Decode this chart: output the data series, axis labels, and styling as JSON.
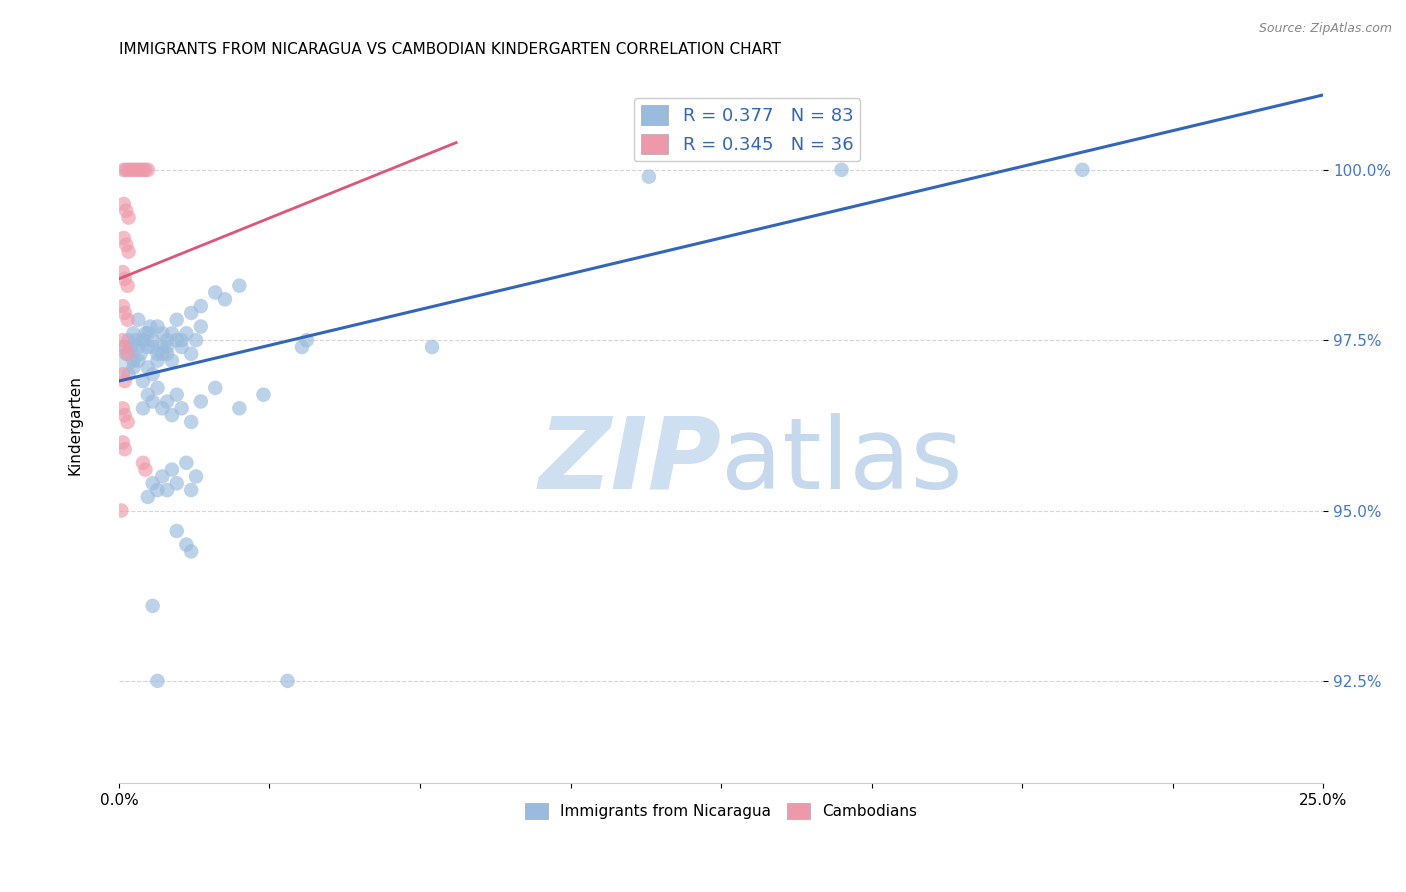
{
  "title": "IMMIGRANTS FROM NICARAGUA VS CAMBODIAN KINDERGARTEN CORRELATION CHART",
  "source": "Source: ZipAtlas.com",
  "ylabel": "Kindergarten",
  "yticks": [
    92.5,
    95.0,
    97.5,
    100.0
  ],
  "ytick_labels": [
    "92.5%",
    "95.0%",
    "97.5%",
    "100.0%"
  ],
  "xlim": [
    0.0,
    25.0
  ],
  "ylim": [
    91.0,
    101.5
  ],
  "legend1_label": "R = 0.377   N = 83",
  "legend2_label": "R = 0.345   N = 36",
  "blue_color": "#99bbdd",
  "pink_color": "#ee99aa",
  "blue_line_color": "#3366bb",
  "pink_line_color": "#dd5577",
  "tick_color": "#4477cc",
  "blue_scatter": [
    [
      0.3,
      97.2
    ],
    [
      0.4,
      97.8
    ],
    [
      0.5,
      97.5
    ],
    [
      0.6,
      97.6
    ],
    [
      0.7,
      97.4
    ],
    [
      0.8,
      97.7
    ],
    [
      0.9,
      97.3
    ],
    [
      1.0,
      97.5
    ],
    [
      1.1,
      97.6
    ],
    [
      1.2,
      97.8
    ],
    [
      1.3,
      97.5
    ],
    [
      1.5,
      97.9
    ],
    [
      1.7,
      98.0
    ],
    [
      2.0,
      98.2
    ],
    [
      2.2,
      98.1
    ],
    [
      2.5,
      98.3
    ],
    [
      0.2,
      97.0
    ],
    [
      0.3,
      97.1
    ],
    [
      0.4,
      97.2
    ],
    [
      0.5,
      96.9
    ],
    [
      0.6,
      97.1
    ],
    [
      0.7,
      97.0
    ],
    [
      0.8,
      97.2
    ],
    [
      0.9,
      97.4
    ],
    [
      1.0,
      97.3
    ],
    [
      1.1,
      97.2
    ],
    [
      1.2,
      97.5
    ],
    [
      1.3,
      97.4
    ],
    [
      1.4,
      97.6
    ],
    [
      1.5,
      97.3
    ],
    [
      1.6,
      97.5
    ],
    [
      1.7,
      97.7
    ],
    [
      0.15,
      97.3
    ],
    [
      0.2,
      97.5
    ],
    [
      0.25,
      97.4
    ],
    [
      0.3,
      97.6
    ],
    [
      0.35,
      97.5
    ],
    [
      0.4,
      97.4
    ],
    [
      0.45,
      97.3
    ],
    [
      0.5,
      97.5
    ],
    [
      0.55,
      97.6
    ],
    [
      0.6,
      97.4
    ],
    [
      0.65,
      97.7
    ],
    [
      0.7,
      97.5
    ],
    [
      0.8,
      97.3
    ],
    [
      0.9,
      97.6
    ],
    [
      1.0,
      97.4
    ],
    [
      0.5,
      96.5
    ],
    [
      0.6,
      96.7
    ],
    [
      0.7,
      96.6
    ],
    [
      0.8,
      96.8
    ],
    [
      0.9,
      96.5
    ],
    [
      1.0,
      96.6
    ],
    [
      1.1,
      96.4
    ],
    [
      1.2,
      96.7
    ],
    [
      1.3,
      96.5
    ],
    [
      1.5,
      96.3
    ],
    [
      1.7,
      96.6
    ],
    [
      2.0,
      96.8
    ],
    [
      2.5,
      96.5
    ],
    [
      3.0,
      96.7
    ],
    [
      0.6,
      95.2
    ],
    [
      0.7,
      95.4
    ],
    [
      0.8,
      95.3
    ],
    [
      0.9,
      95.5
    ],
    [
      1.0,
      95.3
    ],
    [
      1.1,
      95.6
    ],
    [
      1.2,
      95.4
    ],
    [
      1.4,
      95.7
    ],
    [
      1.5,
      95.3
    ],
    [
      1.6,
      95.5
    ],
    [
      1.2,
      94.7
    ],
    [
      1.4,
      94.5
    ],
    [
      1.5,
      94.4
    ],
    [
      0.7,
      93.6
    ],
    [
      3.8,
      97.4
    ],
    [
      3.9,
      97.5
    ],
    [
      6.5,
      97.4
    ],
    [
      11.0,
      99.9
    ],
    [
      15.0,
      100.0
    ],
    [
      20.0,
      100.0
    ],
    [
      0.8,
      92.5
    ],
    [
      3.5,
      92.5
    ]
  ],
  "pink_scatter": [
    [
      0.1,
      100.0
    ],
    [
      0.15,
      100.0
    ],
    [
      0.2,
      100.0
    ],
    [
      0.25,
      100.0
    ],
    [
      0.3,
      100.0
    ],
    [
      0.35,
      100.0
    ],
    [
      0.4,
      100.0
    ],
    [
      0.45,
      100.0
    ],
    [
      0.5,
      100.0
    ],
    [
      0.55,
      100.0
    ],
    [
      0.6,
      100.0
    ],
    [
      0.1,
      99.5
    ],
    [
      0.15,
      99.4
    ],
    [
      0.2,
      99.3
    ],
    [
      0.1,
      99.0
    ],
    [
      0.15,
      98.9
    ],
    [
      0.2,
      98.8
    ],
    [
      0.08,
      98.5
    ],
    [
      0.12,
      98.4
    ],
    [
      0.18,
      98.3
    ],
    [
      0.08,
      98.0
    ],
    [
      0.12,
      97.9
    ],
    [
      0.18,
      97.8
    ],
    [
      0.08,
      97.5
    ],
    [
      0.12,
      97.4
    ],
    [
      0.18,
      97.3
    ],
    [
      0.08,
      97.0
    ],
    [
      0.12,
      96.9
    ],
    [
      0.08,
      96.5
    ],
    [
      0.12,
      96.4
    ],
    [
      0.18,
      96.3
    ],
    [
      0.08,
      96.0
    ],
    [
      0.12,
      95.9
    ],
    [
      0.5,
      95.7
    ],
    [
      0.55,
      95.6
    ],
    [
      0.05,
      95.0
    ]
  ],
  "blue_line_x": [
    0.0,
    25.0
  ],
  "blue_line_y": [
    96.9,
    101.1
  ],
  "pink_line_x": [
    0.0,
    7.0
  ],
  "pink_line_y": [
    98.4,
    100.4
  ]
}
